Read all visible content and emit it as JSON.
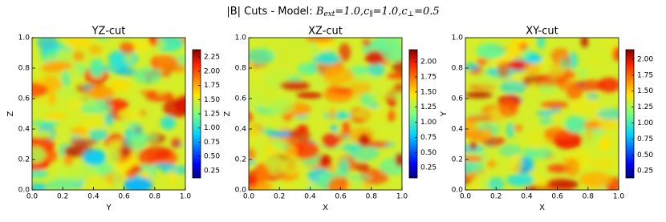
{
  "title": "|B| Cuts - Model:",
  "model_params": [
    {
      "symbol": "B",
      "subscript": "ext",
      "value": "1.0"
    },
    {
      "symbol": "c",
      "subscript": "∥",
      "value": "1.0"
    },
    {
      "symbol": "c",
      "subscript": "⊥",
      "value": "0.5"
    }
  ],
  "chart_data": [
    {
      "type": "heatmap",
      "title": "YZ-cut",
      "xlabel": "Y",
      "ylabel": "Z",
      "colormap": "jet",
      "xlim": [
        0,
        1
      ],
      "ylim": [
        0,
        1
      ],
      "xticks": [
        {
          "value": 0,
          "label": "0.0"
        },
        0.2,
        0.4,
        0.6,
        0.8,
        {
          "value": 1,
          "label": "1.0"
        }
      ],
      "yticks": [
        {
          "value": 0,
          "label": "0.0"
        },
        0.2,
        0.4,
        0.6,
        0.8,
        {
          "value": 1,
          "label": "1.0"
        }
      ],
      "clim": [
        0.12,
        2.38
      ],
      "cticks": [
        0.25,
        {
          "value": 0.5,
          "label": "0.50"
        },
        0.75,
        {
          "value": 1,
          "label": "1.00"
        },
        1.25,
        {
          "value": 1.5,
          "label": "1.50"
        },
        1.75,
        {
          "value": 2,
          "label": "2.00"
        },
        2.25
      ]
    },
    {
      "type": "heatmap",
      "title": "XZ-cut",
      "xlabel": "X",
      "ylabel": "Z",
      "colormap": "jet",
      "xlim": [
        0,
        1
      ],
      "ylim": [
        0,
        1
      ],
      "xticks": [
        {
          "value": 0,
          "label": "0.0"
        },
        0.2,
        0.4,
        0.6,
        0.8,
        {
          "value": 1,
          "label": "1.0"
        }
      ],
      "yticks": [
        {
          "value": 0,
          "label": "0.0"
        },
        0.2,
        0.4,
        0.6,
        0.8,
        {
          "value": 1,
          "label": "1.0"
        }
      ],
      "clim": [
        0.08,
        2.2
      ],
      "cticks": [
        0.25,
        {
          "value": 0.5,
          "label": "0.50"
        },
        0.75,
        {
          "value": 1,
          "label": "1.00"
        },
        1.25,
        {
          "value": 1.5,
          "label": "1.50"
        },
        1.75,
        {
          "value": 2,
          "label": "2.00"
        }
      ]
    },
    {
      "type": "heatmap",
      "title": "XY-cut",
      "xlabel": "X",
      "ylabel": "Y",
      "colormap": "jet",
      "xlim": [
        0,
        1
      ],
      "ylim": [
        0,
        1
      ],
      "xticks": [
        {
          "value": 0,
          "label": "0.0"
        },
        0.2,
        0.4,
        0.6,
        0.8,
        {
          "value": 1,
          "label": "1.0"
        }
      ],
      "yticks": [
        {
          "value": 0,
          "label": "0.0"
        },
        0.2,
        0.4,
        0.6,
        0.8,
        {
          "value": 1,
          "label": "1.0"
        }
      ],
      "clim": [
        0.14,
        2.15
      ],
      "cticks": [
        0.25,
        {
          "value": 0.5,
          "label": "0.50"
        },
        0.75,
        {
          "value": 1,
          "label": "1.00"
        },
        1.25,
        {
          "value": 1.5,
          "label": "1.50"
        },
        1.75,
        {
          "value": 2,
          "label": "2.00"
        }
      ]
    }
  ]
}
